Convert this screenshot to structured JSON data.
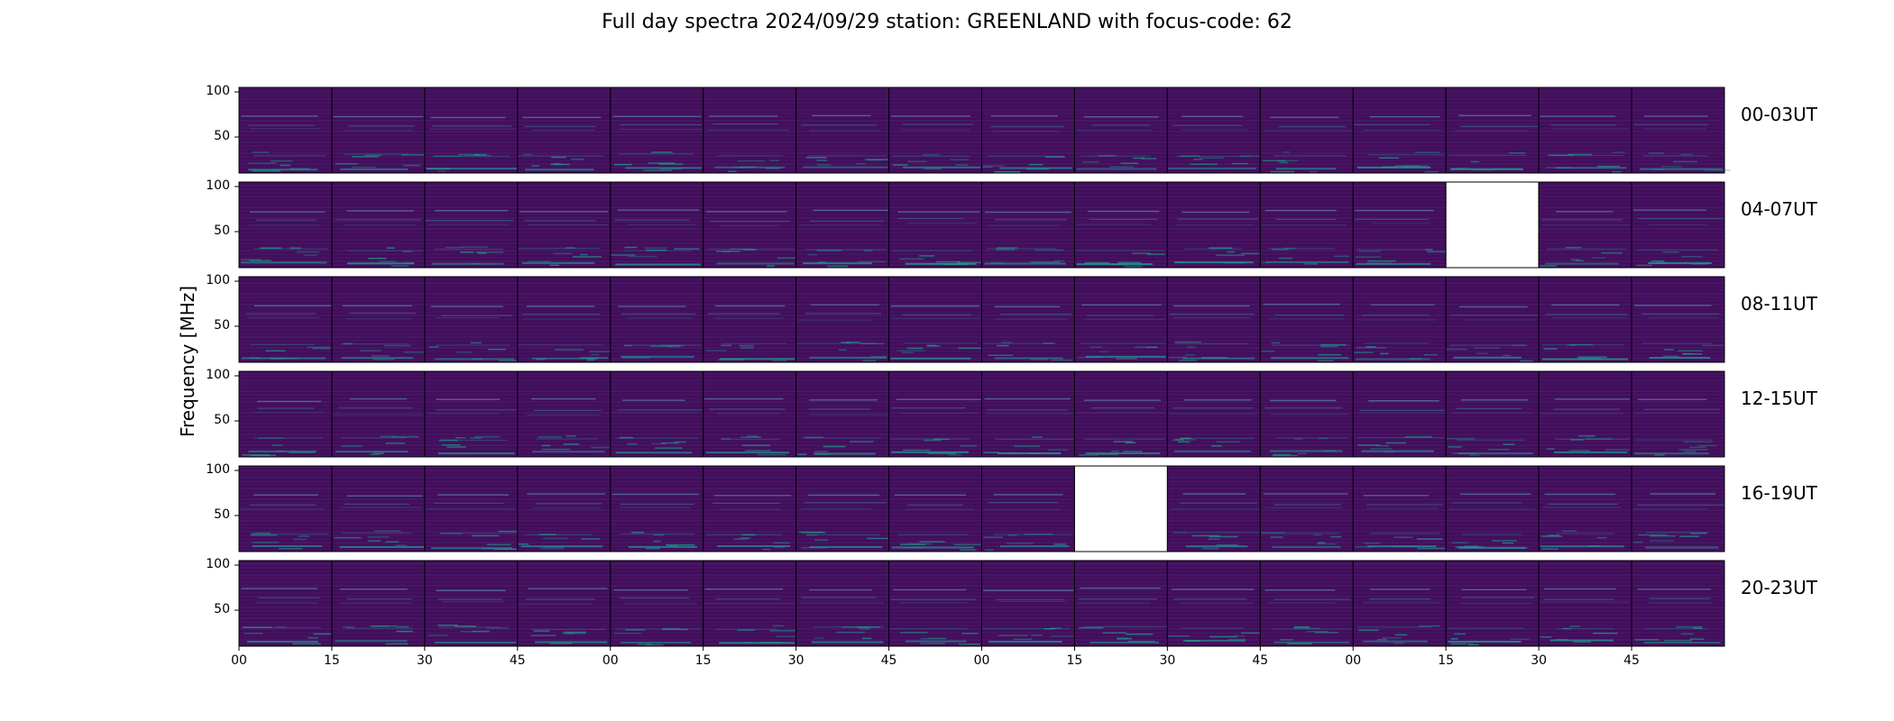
{
  "chart_data": {
    "type": "heatmap",
    "title": "Full day spectra 2024/09/29 station: GREENLAND with focus-code: 62",
    "ylabel": "Frequency [MHz]",
    "yticks": [
      "100",
      "50"
    ],
    "ylim": [
      10,
      105
    ],
    "xtick_labels": [
      "00",
      "15",
      "30",
      "45",
      "00",
      "15",
      "30",
      "45",
      "00",
      "15",
      "30",
      "45",
      "00",
      "15",
      "30",
      "45"
    ],
    "panels_per_row": 16,
    "panel_minutes": 15,
    "colormap": "viridis",
    "rows": [
      {
        "label": "00-03UT",
        "missing_panels": []
      },
      {
        "label": "04-07UT",
        "missing_panels": [
          13
        ]
      },
      {
        "label": "08-11UT",
        "missing_panels": []
      },
      {
        "label": "12-15UT",
        "missing_panels": []
      },
      {
        "label": "16-19UT",
        "missing_panels": [
          9
        ]
      },
      {
        "label": "20-23UT",
        "missing_panels": []
      }
    ]
  }
}
